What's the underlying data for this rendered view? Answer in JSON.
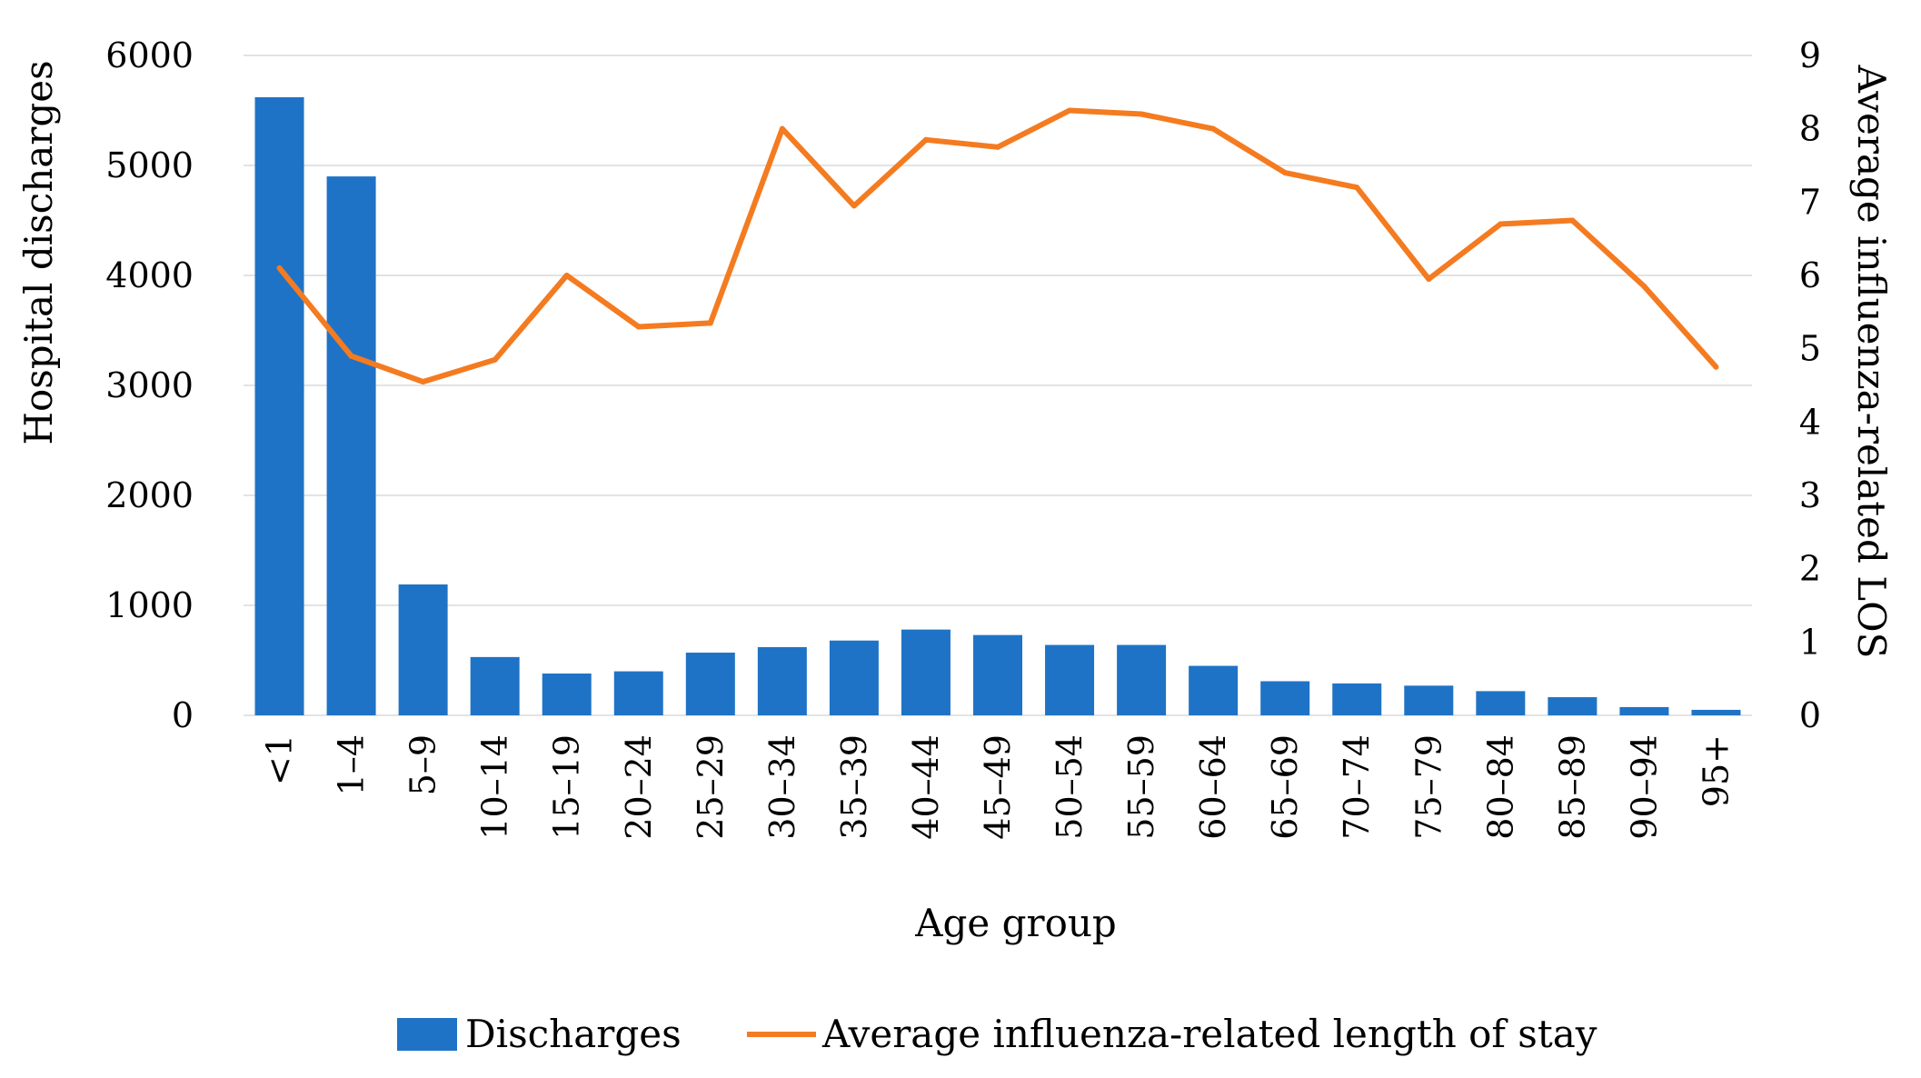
{
  "chart_data": {
    "type": "bar",
    "title": "",
    "xlabel": "Age group",
    "ylabel": "Hospital discharges",
    "y2label": "Average influenza-related LOS",
    "ylim": [
      0,
      6000
    ],
    "y2lim": [
      0,
      9
    ],
    "yticks": [
      "0",
      "1000",
      "2000",
      "3000",
      "4000",
      "5000",
      "6000"
    ],
    "y2ticks": [
      "0",
      "1",
      "2",
      "3",
      "4",
      "5",
      "6",
      "7",
      "8",
      "9"
    ],
    "grid": true,
    "legend_position": "bottom",
    "categories": [
      "<1",
      "1–4",
      "5–9",
      "10–14",
      "15–19",
      "20–24",
      "25–29",
      "30–34",
      "35–39",
      "40–44",
      "45–49",
      "50–54",
      "55–59",
      "60–64",
      "65–69",
      "70–74",
      "75–79",
      "80–84",
      "85–89",
      "90–94",
      "95+"
    ],
    "series": [
      {
        "name": "Discharges",
        "type": "bar",
        "axis": "left",
        "color": "#1f73c6",
        "values": [
          5620,
          4900,
          1190,
          530,
          380,
          400,
          570,
          620,
          680,
          780,
          730,
          640,
          640,
          450,
          310,
          290,
          270,
          220,
          165,
          75,
          50
        ]
      },
      {
        "name": "Average influenza-related length of stay",
        "type": "line",
        "axis": "right",
        "color": "#f47b20",
        "values": [
          6.1,
          4.9,
          4.55,
          4.85,
          6.0,
          5.3,
          5.35,
          8.0,
          6.95,
          7.85,
          7.75,
          8.25,
          8.2,
          8.0,
          7.4,
          7.2,
          5.95,
          6.7,
          6.75,
          5.85,
          4.75
        ]
      }
    ]
  }
}
